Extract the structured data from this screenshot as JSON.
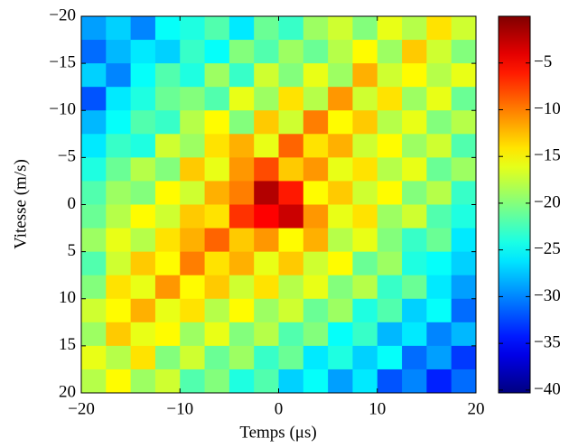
{
  "chart_data": {
    "type": "heatmap",
    "x_label": "Temps (μs)",
    "y_label": "Vitesse (m/s)",
    "xlim": [
      -20,
      20
    ],
    "ylim": [
      -20,
      20
    ],
    "y_inverted": true,
    "xticks": [
      {
        "value": -20,
        "label": "−20"
      },
      {
        "value": -10,
        "label": "−10"
      },
      0,
      10,
      20
    ],
    "yticks": [
      {
        "value": -20,
        "label": "−20"
      },
      {
        "value": -15,
        "label": "−15"
      },
      {
        "value": -10,
        "label": "−10"
      },
      {
        "value": -5,
        "label": "−5"
      },
      0,
      5,
      10,
      15,
      20
    ],
    "colormap": "jet",
    "clim": [
      -40.3,
      0
    ],
    "cticks": [
      {
        "value": -40,
        "label": "−40"
      },
      {
        "value": -35,
        "label": "−35"
      },
      {
        "value": -30,
        "label": "−30"
      },
      {
        "value": -25,
        "label": "−25"
      },
      {
        "value": -20,
        "label": "−20"
      },
      {
        "value": -15,
        "label": "−15"
      },
      {
        "value": -10,
        "label": "−10"
      },
      {
        "value": -5,
        "label": "−5"
      }
    ],
    "z": [
      [
        -29,
        -27,
        -30,
        -25,
        -24,
        -22,
        -26,
        -21,
        -23,
        -19,
        -17,
        -20,
        -16,
        -18,
        -14,
        -17
      ],
      [
        -31,
        -28,
        -26,
        -27,
        -23,
        -25,
        -20,
        -22,
        -19,
        -21,
        -18,
        -15,
        -19,
        -13,
        -17,
        -20
      ],
      [
        -27,
        -30,
        -25,
        -22,
        -24,
        -19,
        -23,
        -17,
        -20,
        -16,
        -19,
        -12,
        -17,
        -15,
        -18,
        -16
      ],
      [
        -32,
        -26,
        -24,
        -21,
        -20,
        -22,
        -16,
        -19,
        -14,
        -18,
        -11,
        -17,
        -14,
        -19,
        -16,
        -21
      ],
      [
        -28,
        -25,
        -22,
        -23,
        -18,
        -15,
        -20,
        -13,
        -17,
        -10,
        -15,
        -13,
        -18,
        -16,
        -20,
        -18
      ],
      [
        -26,
        -23,
        -24,
        -17,
        -19,
        -14,
        -12,
        -16,
        -9,
        -14,
        -12,
        -17,
        -15,
        -19,
        -17,
        -22
      ],
      [
        -24,
        -21,
        -18,
        -20,
        -13,
        -16,
        -11,
        -8,
        -13,
        -11,
        -16,
        -14,
        -18,
        -16,
        -21,
        -19
      ],
      [
        -22,
        -19,
        -20,
        -15,
        -17,
        -12,
        -10,
        -2,
        -6,
        -15,
        -13,
        -17,
        -15,
        -20,
        -18,
        -23
      ],
      [
        -21,
        -18,
        -15,
        -17,
        -13,
        -14,
        -7,
        -5,
        -3,
        -11,
        -16,
        -14,
        -19,
        -17,
        -22,
        -24
      ],
      [
        -19,
        -16,
        -18,
        -14,
        -12,
        -9,
        -13,
        -11,
        -15,
        -12,
        -18,
        -16,
        -20,
        -23,
        -21,
        -26
      ],
      [
        -22,
        -17,
        -13,
        -15,
        -10,
        -14,
        -12,
        -16,
        -13,
        -17,
        -15,
        -21,
        -19,
        -24,
        -25,
        -27
      ],
      [
        -20,
        -14,
        -16,
        -11,
        -15,
        -13,
        -17,
        -14,
        -18,
        -16,
        -20,
        -18,
        -23,
        -21,
        -26,
        -29
      ],
      [
        -17,
        -15,
        -12,
        -16,
        -14,
        -18,
        -15,
        -19,
        -17,
        -21,
        -19,
        -24,
        -22,
        -27,
        -25,
        -31
      ],
      [
        -19,
        -13,
        -16,
        -15,
        -19,
        -16,
        -20,
        -18,
        -22,
        -20,
        -25,
        -23,
        -28,
        -26,
        -30,
        -28
      ],
      [
        -16,
        -18,
        -14,
        -20,
        -17,
        -21,
        -19,
        -23,
        -21,
        -26,
        -24,
        -27,
        -25,
        -31,
        -29,
        -33
      ],
      [
        -18,
        -15,
        -19,
        -17,
        -22,
        -20,
        -24,
        -22,
        -27,
        -25,
        -29,
        -26,
        -32,
        -30,
        -34,
        -31
      ]
    ]
  }
}
